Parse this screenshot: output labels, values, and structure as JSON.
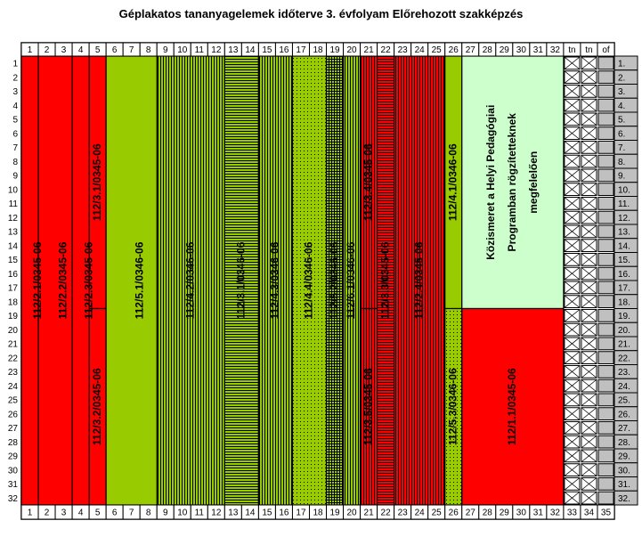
{
  "title": "Géplakatos tananyagelemek időterve 3. évfolyam Előrehozott szakképzés",
  "colors": {
    "red": "#ff0000",
    "green": "#99cc00",
    "green_dark": "#669900",
    "light_green": "#ccffcc",
    "grey": "#c0c0c0",
    "stripe_dark": "#000000"
  },
  "chart_data": {
    "type": "table",
    "columns": [
      "1",
      "2",
      "3",
      "4",
      "5",
      "6",
      "7",
      "8",
      "9",
      "10",
      "11",
      "12",
      "13",
      "14",
      "15",
      "16",
      "17",
      "18",
      "19",
      "20",
      "21",
      "22",
      "23",
      "24",
      "25",
      "26",
      "27",
      "28",
      "29",
      "30",
      "31",
      "32",
      "tn",
      "tn",
      "of"
    ],
    "bottom_columns": [
      "1",
      "2",
      "3",
      "4",
      "5",
      "6",
      "7",
      "8",
      "9",
      "10",
      "11",
      "12",
      "13",
      "14",
      "15",
      "16",
      "17",
      "18",
      "19",
      "20",
      "21",
      "22",
      "23",
      "24",
      "25",
      "26",
      "27",
      "28",
      "29",
      "30",
      "31",
      "32",
      "33",
      "34",
      "35"
    ],
    "rows": [
      "1",
      "2",
      "3",
      "4",
      "5",
      "6",
      "7",
      "8",
      "9",
      "10",
      "11",
      "12",
      "13",
      "14",
      "15",
      "16",
      "17",
      "18",
      "19",
      "20",
      "21",
      "22",
      "23",
      "24",
      "25",
      "26",
      "27",
      "28",
      "29",
      "30",
      "31",
      "32"
    ],
    "row_labels_right": [
      "1.",
      "2.",
      "3.",
      "4.",
      "5.",
      "6.",
      "7.",
      "8.",
      "9.",
      "10.",
      "11.",
      "12.",
      "13.",
      "14.",
      "15.",
      "16.",
      "17.",
      "18.",
      "19.",
      "20.",
      "21.",
      "22.",
      "23.",
      "24.",
      "25.",
      "26.",
      "27.",
      "28.",
      "29.",
      "30.",
      "31.",
      "32."
    ],
    "blocks": [
      {
        "label": "112/2.1/0345-06",
        "col_start": 1,
        "col_end": 2,
        "row_start": 1,
        "row_end": 32,
        "fill": "red",
        "pattern": "solid"
      },
      {
        "label": "112/2.2/0345-06",
        "col_start": 2,
        "col_end": 4,
        "row_start": 1,
        "row_end": 32,
        "fill": "red",
        "pattern": "solid"
      },
      {
        "label": "112/2.3/0345-06",
        "col_start": 4,
        "col_end": 5,
        "row_start": 1,
        "row_end": 32,
        "fill": "red",
        "pattern": "solid"
      },
      {
        "label": "112/3.1/0345-06",
        "col_start": 5,
        "col_end": 5,
        "row_start": 1,
        "row_end": 18,
        "fill": "red",
        "pattern": "solid"
      },
      {
        "label": "112/3.2/0345-06",
        "col_start": 5,
        "col_end": 5,
        "row_start": 19,
        "row_end": 32,
        "fill": "red",
        "pattern": "solid"
      },
      {
        "label": "112/5.1/0346-06",
        "col_start": 6,
        "col_end": 9,
        "row_start": 1,
        "row_end": 32,
        "fill": "green",
        "pattern": "solid"
      },
      {
        "label": "112/4.2/0346-06",
        "col_start": 9,
        "col_end": 12,
        "row_start": 1,
        "row_end": 32,
        "fill": "green",
        "pattern": "vstripes"
      },
      {
        "label": "112/3.1/0346-06",
        "col_start": 13,
        "col_end": 14,
        "row_start": 1,
        "row_end": 32,
        "fill": "green",
        "pattern": "hstripes"
      },
      {
        "label": "112/4.3/0346-06",
        "col_start": 15,
        "col_end": 16,
        "row_start": 1,
        "row_end": 32,
        "fill": "green",
        "pattern": "vstripes"
      },
      {
        "label": "112/4.4/0346-06",
        "col_start": 17,
        "col_end": 18,
        "row_start": 1,
        "row_end": 32,
        "fill": "green",
        "pattern": "dots"
      },
      {
        "label": "112/5.2/0346-06",
        "col_start": 19,
        "col_end": 19,
        "row_start": 1,
        "row_end": 32,
        "fill": "green",
        "pattern": "grid"
      },
      {
        "label": "112/6.1/0346-06",
        "col_start": 20,
        "col_end": 20,
        "row_start": 1,
        "row_end": 32,
        "fill": "green",
        "pattern": "vstripes"
      },
      {
        "label": "112/3.4/0345-06",
        "col_start": 21,
        "col_end": 21,
        "row_start": 1,
        "row_end": 18,
        "fill": "red",
        "pattern": "vstripes"
      },
      {
        "label": "112/3.5/0345-06",
        "col_start": 21,
        "col_end": 21,
        "row_start": 19,
        "row_end": 32,
        "fill": "red",
        "pattern": "vstripes"
      },
      {
        "label": "112/3.3/0345-06",
        "col_start": 22,
        "col_end": 22,
        "row_start": 1,
        "row_end": 32,
        "fill": "red",
        "pattern": "hstripes"
      },
      {
        "label": "112/2.4/0345-06",
        "col_start": 23,
        "col_end": 25,
        "row_start": 1,
        "row_end": 32,
        "fill": "red",
        "pattern": "vstripes"
      },
      {
        "label": "112/4.1/0346-06",
        "col_start": 26,
        "col_end": 26,
        "row_start": 1,
        "row_end": 18,
        "fill": "green",
        "pattern": "solid"
      },
      {
        "label": "112/5.3/0346-06",
        "col_start": 26,
        "col_end": 26,
        "row_start": 19,
        "row_end": 32,
        "fill": "green",
        "pattern": "dots"
      },
      {
        "label": "Közismeret a Helyi Pedagógiai Programban rögzítetteknek megfelelően",
        "col_start": 27,
        "col_end": 32,
        "row_start": 1,
        "row_end": 18,
        "fill": "light_green",
        "pattern": "solid"
      },
      {
        "label": "112/1.1/0345-06",
        "col_start": 27,
        "col_end": 32,
        "row_start": 19,
        "row_end": 32,
        "fill": "red",
        "pattern": "solid"
      }
    ],
    "crossed_columns": [
      33,
      34
    ]
  }
}
